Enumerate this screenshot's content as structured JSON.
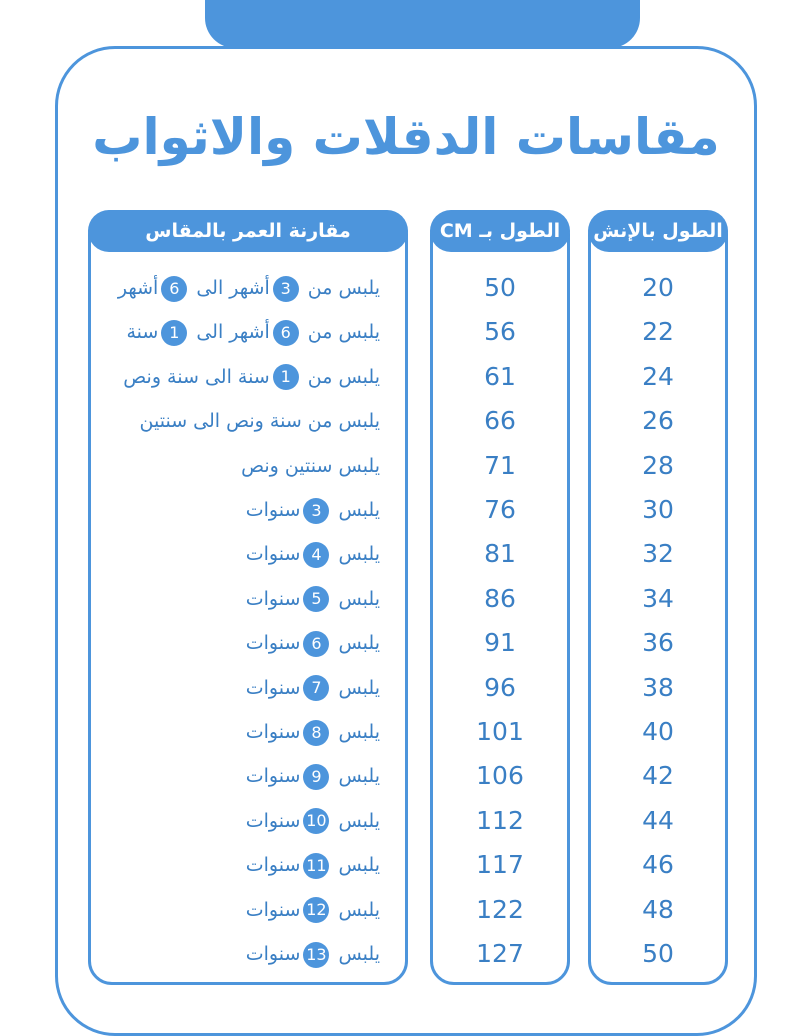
{
  "title": "مقاسات الدقلات والاثواب",
  "table": {
    "headers": [
      "الطول بالإنش",
      "الطول بـ CM",
      "مقارنة العمر بالمقاس"
    ],
    "rows": [
      {
        "inch": 20,
        "cm": 50,
        "age": [
          "يلبس من",
          3,
          "أشهر الى",
          6,
          "أشهر"
        ]
      },
      {
        "inch": 22,
        "cm": 56,
        "age": [
          "يلبس من",
          6,
          "أشهر الى",
          1,
          "سنة"
        ]
      },
      {
        "inch": 24,
        "cm": 61,
        "age": [
          "يلبس من",
          1,
          "سنة الى سنة ونص"
        ]
      },
      {
        "inch": 26,
        "cm": 66,
        "age": [
          "يلبس من سنة ونص الى سنتين"
        ]
      },
      {
        "inch": 28,
        "cm": 71,
        "age": [
          "يلبس سنتين ونص"
        ]
      },
      {
        "inch": 30,
        "cm": 76,
        "age": [
          "يلبس",
          3,
          "سنوات"
        ]
      },
      {
        "inch": 32,
        "cm": 81,
        "age": [
          "يلبس",
          4,
          "سنوات"
        ]
      },
      {
        "inch": 34,
        "cm": 86,
        "age": [
          "يلبس",
          5,
          "سنوات"
        ]
      },
      {
        "inch": 36,
        "cm": 91,
        "age": [
          "يلبس",
          6,
          "سنوات"
        ]
      },
      {
        "inch": 38,
        "cm": 96,
        "age": [
          "يلبس",
          7,
          "سنوات"
        ]
      },
      {
        "inch": 40,
        "cm": 101,
        "age": [
          "يلبس",
          8,
          "سنوات"
        ]
      },
      {
        "inch": 42,
        "cm": 106,
        "age": [
          "يلبس",
          9,
          "سنوات"
        ]
      },
      {
        "inch": 44,
        "cm": 112,
        "age": [
          "يلبس",
          10,
          "سنوات"
        ]
      },
      {
        "inch": 46,
        "cm": 117,
        "age": [
          "يلبس",
          11,
          "سنوات"
        ]
      },
      {
        "inch": 48,
        "cm": 122,
        "age": [
          "يلبس",
          12,
          "سنوات"
        ]
      },
      {
        "inch": 50,
        "cm": 127,
        "age": [
          "يلبس",
          13,
          "سنوات"
        ]
      }
    ]
  }
}
